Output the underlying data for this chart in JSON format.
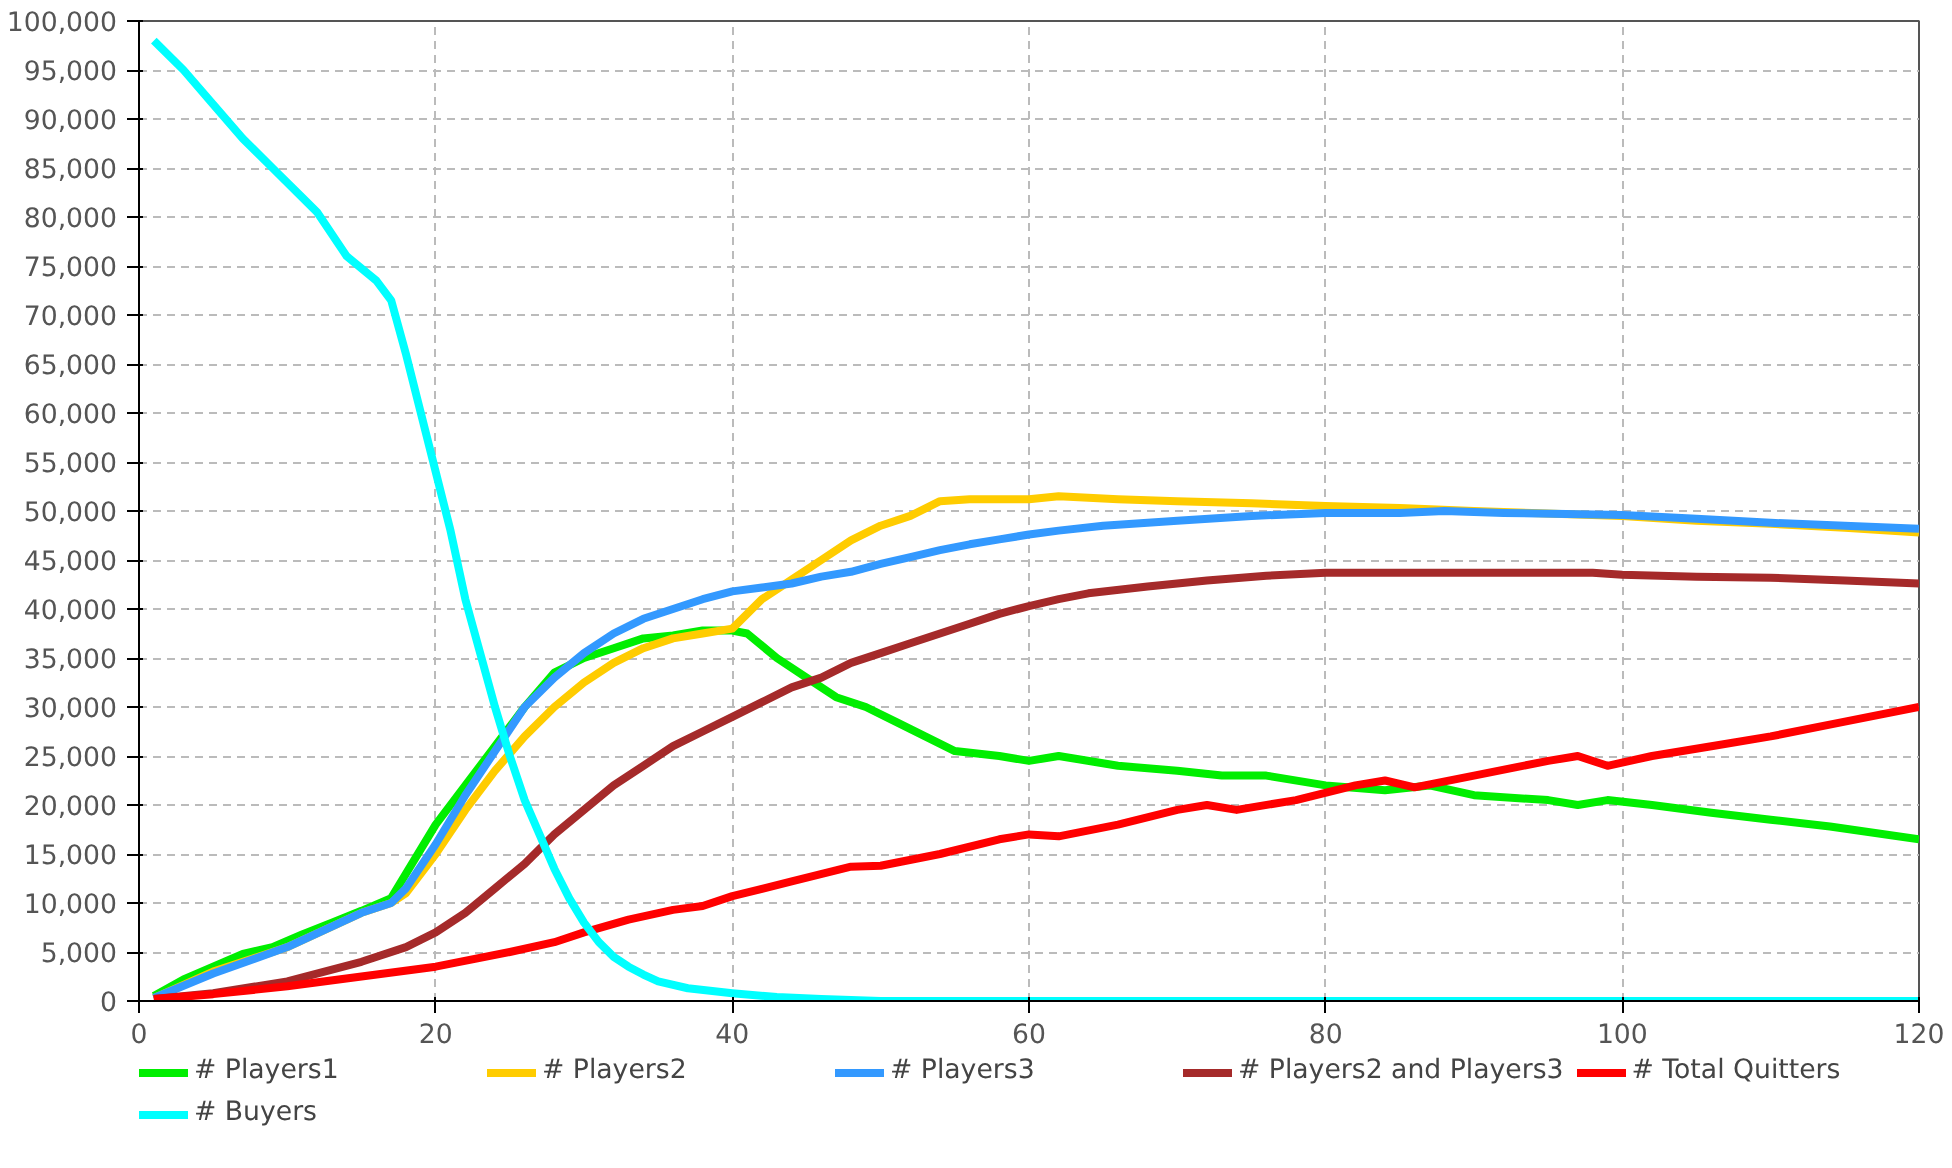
{
  "chart_data": {
    "type": "line",
    "xlim": [
      0,
      120
    ],
    "xticks": [
      0,
      20,
      40,
      60,
      80,
      100,
      120
    ],
    "ylim": [
      0,
      100000
    ],
    "yticks": [
      {
        "value": 0,
        "label": "0"
      },
      {
        "value": 5000,
        "label": "5,000"
      },
      {
        "value": 10000,
        "label": "10,000"
      },
      {
        "value": 15000,
        "label": "15,000"
      },
      {
        "value": 20000,
        "label": "20,000"
      },
      {
        "value": 25000,
        "label": "25,000"
      },
      {
        "value": 30000,
        "label": "30,000"
      },
      {
        "value": 35000,
        "label": "35,000"
      },
      {
        "value": 40000,
        "label": "40,000"
      },
      {
        "value": 45000,
        "label": "45,000"
      },
      {
        "value": 50000,
        "label": "50,000"
      },
      {
        "value": 55000,
        "label": "55,000"
      },
      {
        "value": 60000,
        "label": "60,000"
      },
      {
        "value": 65000,
        "label": "65,000"
      },
      {
        "value": 70000,
        "label": "70,000"
      },
      {
        "value": 75000,
        "label": "75,000"
      },
      {
        "value": 80000,
        "label": "80,000"
      },
      {
        "value": 85000,
        "label": "85,000"
      },
      {
        "value": 90000,
        "label": "90,000"
      },
      {
        "value": 95000,
        "label": "95,000"
      },
      {
        "value": 100000,
        "label": "100,000"
      }
    ],
    "grid": true,
    "legend": "bottom",
    "marker": "none",
    "line_style": "solid",
    "series": [
      {
        "name": "# Players1",
        "color": "#00ee00",
        "x": [
          1,
          3,
          5,
          7,
          9,
          11,
          13,
          15,
          17,
          18,
          19,
          20,
          22,
          24,
          26,
          28,
          30,
          32,
          34,
          36,
          38,
          40,
          41,
          43,
          45,
          47,
          49,
          51,
          53,
          55,
          58,
          60,
          62,
          66,
          70,
          73,
          76,
          80,
          84,
          87,
          90,
          95,
          97,
          99,
          102,
          106,
          110,
          114,
          120
        ],
        "values": [
          500,
          2200,
          3500,
          4800,
          5500,
          6800,
          8000,
          9200,
          10500,
          13000,
          15500,
          18000,
          22000,
          26000,
          30000,
          33500,
          35000,
          36000,
          37000,
          37300,
          37800,
          37800,
          37500,
          35000,
          33000,
          31000,
          30000,
          28500,
          27000,
          25500,
          25000,
          24500,
          25000,
          24000,
          23500,
          23000,
          23000,
          22000,
          21500,
          22000,
          21000,
          20500,
          20000,
          20500,
          20000,
          19200,
          18500,
          17800,
          16500
        ]
      },
      {
        "name": "# Players2",
        "color": "#ffcc00",
        "x": [
          1,
          5,
          10,
          15,
          17,
          18,
          20,
          22,
          24,
          26,
          28,
          30,
          32,
          34,
          36,
          38,
          40,
          42,
          44,
          46,
          48,
          50,
          52,
          54,
          56,
          60,
          62,
          66,
          70,
          75,
          80,
          85,
          90,
          100,
          105,
          110,
          115,
          120
        ],
        "values": [
          300,
          3000,
          5500,
          9000,
          10000,
          11000,
          15000,
          19500,
          23500,
          27000,
          30000,
          32500,
          34500,
          36000,
          37000,
          37500,
          38000,
          41000,
          43000,
          45000,
          47000,
          48500,
          49500,
          51000,
          51200,
          51200,
          51500,
          51200,
          51000,
          50800,
          50500,
          50300,
          50000,
          49500,
          49000,
          48700,
          48300,
          47800
        ]
      },
      {
        "name": "# Players3",
        "color": "#3399ff",
        "x": [
          1,
          5,
          10,
          15,
          17,
          18,
          20,
          22,
          24,
          26,
          28,
          30,
          32,
          34,
          36,
          38,
          40,
          42,
          44,
          46,
          48,
          50,
          52,
          54,
          56,
          58,
          60,
          62,
          65,
          70,
          75,
          80,
          85,
          88,
          92,
          100,
          105,
          110,
          115,
          120
        ],
        "values": [
          300,
          2800,
          5500,
          9000,
          10000,
          11500,
          16000,
          21000,
          25500,
          30000,
          33000,
          35500,
          37500,
          39000,
          40000,
          41000,
          41800,
          42200,
          42600,
          43300,
          43800,
          44600,
          45300,
          46000,
          46600,
          47100,
          47600,
          48000,
          48500,
          49000,
          49500,
          49800,
          49800,
          50000,
          49800,
          49600,
          49200,
          48800,
          48500,
          48200
        ]
      },
      {
        "name": "# Players2 and Players3",
        "color": "#a52a2a",
        "x": [
          1,
          5,
          10,
          15,
          18,
          20,
          22,
          24,
          26,
          28,
          30,
          32,
          34,
          36,
          38,
          40,
          42,
          44,
          46,
          48,
          50,
          52,
          54,
          56,
          58,
          60,
          62,
          64,
          68,
          72,
          76,
          80,
          90,
          98,
          100,
          105,
          110,
          115,
          120
        ],
        "values": [
          200,
          800,
          2000,
          4000,
          5500,
          7000,
          9000,
          11500,
          14000,
          17000,
          19500,
          22000,
          24000,
          26000,
          27500,
          29000,
          30500,
          32000,
          33000,
          34500,
          35500,
          36500,
          37500,
          38500,
          39500,
          40300,
          41000,
          41600,
          42300,
          42900,
          43400,
          43700,
          43700,
          43700,
          43500,
          43300,
          43200,
          42900,
          42600
        ]
      },
      {
        "name": "# Total Quitters",
        "color": "#ff0000",
        "x": [
          1,
          5,
          10,
          15,
          20,
          25,
          28,
          30,
          33,
          36,
          38,
          40,
          44,
          48,
          50,
          54,
          58,
          60,
          62,
          66,
          70,
          72,
          74,
          78,
          82,
          84,
          86,
          90,
          95,
          97,
          99,
          102,
          106,
          110,
          115,
          120
        ],
        "values": [
          200,
          700,
          1500,
          2500,
          3500,
          5000,
          6000,
          7000,
          8300,
          9300,
          9700,
          10700,
          12200,
          13700,
          13800,
          15000,
          16500,
          17000,
          16800,
          18000,
          19500,
          20000,
          19500,
          20500,
          22000,
          22500,
          21800,
          23000,
          24500,
          25000,
          24000,
          25000,
          26000,
          27000,
          28500,
          30000
        ]
      },
      {
        "name": "# Buyers",
        "color": "#00ffff",
        "x": [
          1,
          3,
          5,
          7,
          9,
          11,
          12,
          14,
          16,
          17,
          18,
          19,
          20,
          21,
          22,
          23,
          24,
          25,
          26,
          27,
          28,
          29,
          30,
          31,
          32,
          33,
          34,
          35,
          37,
          40,
          43,
          46,
          50,
          60,
          80,
          120
        ],
        "values": [
          98000,
          95000,
          91500,
          88000,
          85000,
          82000,
          80500,
          76000,
          73500,
          71500,
          66000,
          60000,
          54000,
          48000,
          41000,
          35500,
          30000,
          25000,
          20500,
          17000,
          13500,
          10500,
          8000,
          6000,
          4500,
          3500,
          2700,
          2000,
          1300,
          800,
          400,
          200,
          0,
          0,
          0,
          0
        ]
      }
    ]
  }
}
